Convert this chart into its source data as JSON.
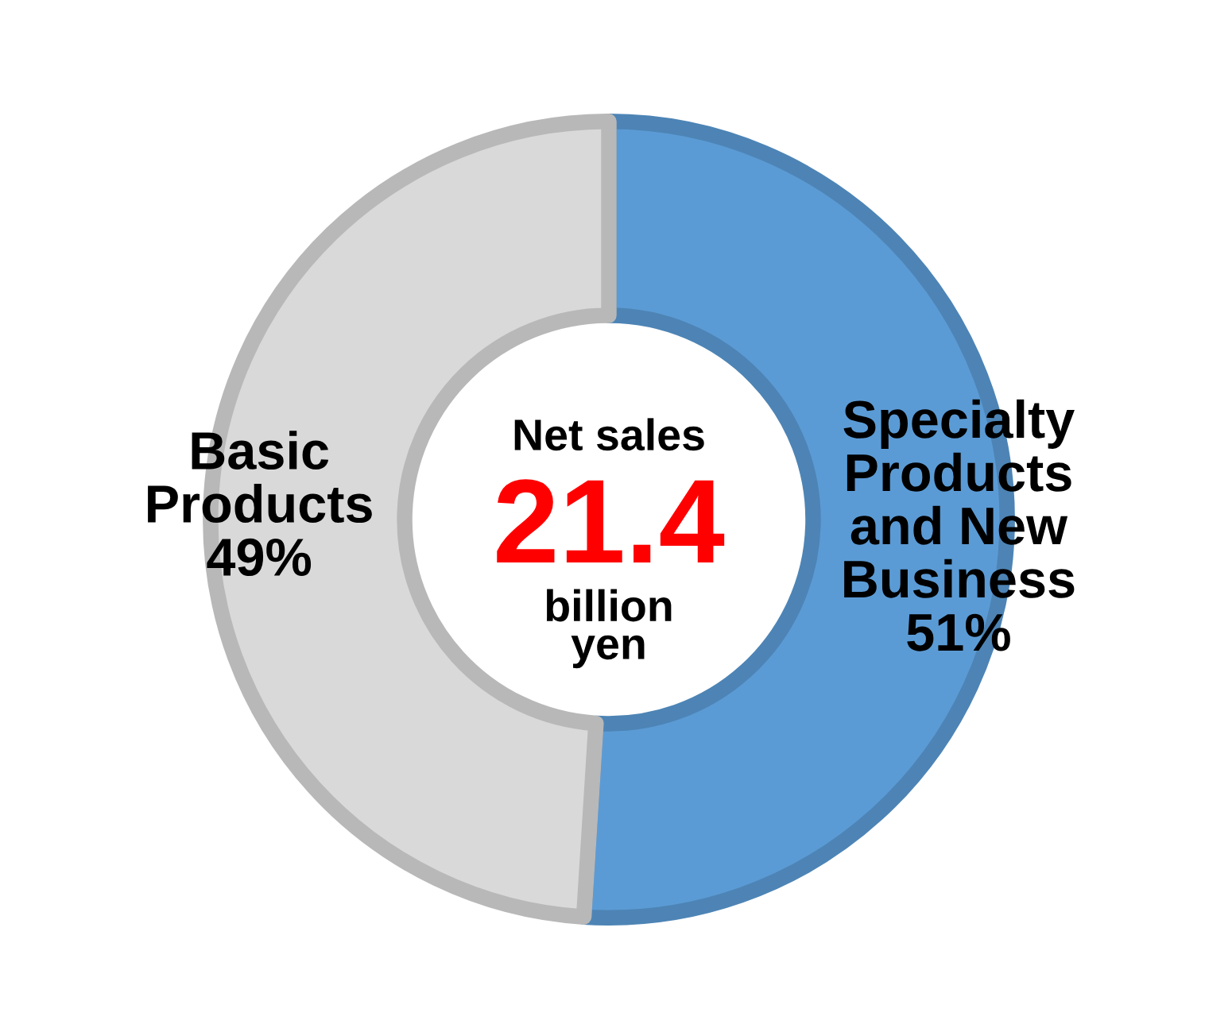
{
  "chart_data": {
    "type": "donut",
    "categories": [
      "Specialty\nProducts\nand New\nBusiness",
      "Basic\nProducts"
    ],
    "values": [
      51,
      49
    ],
    "value_labels": [
      "51%",
      "49%"
    ],
    "colors": [
      "#5b9bd5",
      "#d9d9d9"
    ],
    "annotations": [
      "Net sales",
      "21.4",
      "billion\nyen"
    ]
  }
}
